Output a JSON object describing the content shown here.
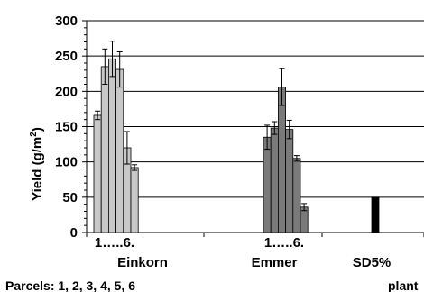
{
  "chart_data": {
    "type": "bar",
    "ylabel": "Yield (g/m",
    "ylabel_sup": "2",
    "ylabel_close": ")",
    "ylim": [
      0,
      300
    ],
    "yticks": [
      0,
      50,
      100,
      150,
      200,
      250,
      300
    ],
    "grid": true,
    "groups": [
      {
        "name": "Einkorn",
        "range_label": "1…..6.",
        "color": "#c8c8c8",
        "categories": [
          "1",
          "2",
          "3",
          "4",
          "5",
          "6"
        ],
        "values": [
          166,
          235,
          246,
          231,
          120,
          92
        ],
        "errors": [
          6,
          25,
          25,
          25,
          23,
          4
        ]
      },
      {
        "name": "Emmer",
        "range_label": "1…..6.",
        "color": "#7a7a7a",
        "categories": [
          "1",
          "2",
          "3",
          "4",
          "5",
          "6"
        ],
        "values": [
          135,
          148,
          206,
          146,
          105,
          36
        ],
        "errors": [
          17,
          9,
          26,
          13,
          4,
          5
        ]
      },
      {
        "name": "SD5%",
        "range_label": "",
        "color": "#000000",
        "categories": [
          "SD5%"
        ],
        "values": [
          50
        ],
        "errors": [
          0
        ]
      }
    ]
  },
  "footer": {
    "parcels_label": "Parcels: 1, 2, 3, 4, 5, 6",
    "plant_label": "plant"
  }
}
